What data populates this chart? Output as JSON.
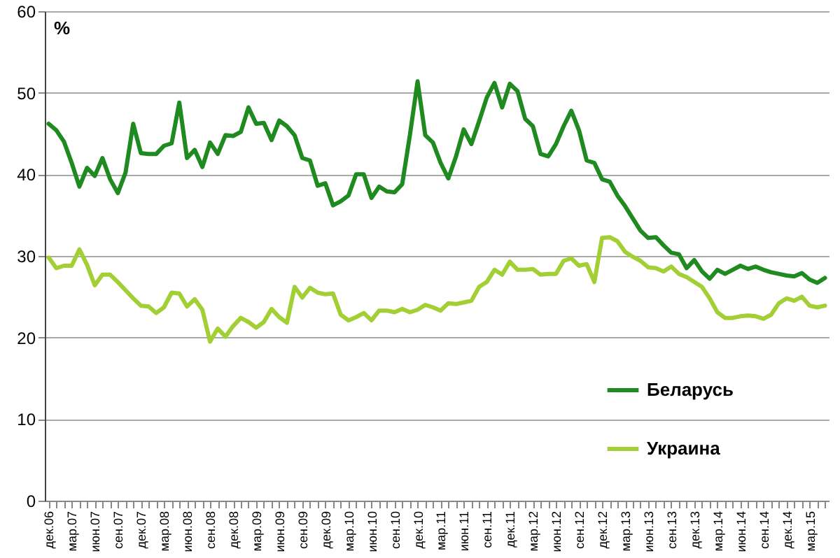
{
  "chart_data": {
    "type": "line",
    "ylabel": "%",
    "categories": [
      "дек.06",
      null,
      null,
      "мар.07",
      null,
      null,
      "июн.07",
      null,
      null,
      "сен.07",
      null,
      null,
      "дек.07",
      null,
      null,
      "мар.08",
      null,
      null,
      "июн.08",
      null,
      null,
      "сен.08",
      null,
      null,
      "дек.08",
      null,
      null,
      "мар.09",
      null,
      null,
      "июн.09",
      null,
      null,
      "сен.09",
      null,
      null,
      "дек.09",
      null,
      null,
      "мар.10",
      null,
      null,
      "июн.10",
      null,
      null,
      "сен.10",
      null,
      null,
      "дек.10",
      null,
      null,
      "мар.11",
      null,
      null,
      "июн.11",
      null,
      null,
      "сен.11",
      null,
      null,
      "дек.11",
      null,
      null,
      "мар.12",
      null,
      null,
      "июн.12",
      null,
      null,
      "сен.12",
      null,
      null,
      "дек.12",
      null,
      null,
      "мар.13",
      null,
      null,
      "июн.13",
      null,
      null,
      "сен.13",
      null,
      null,
      "дек.13",
      null,
      null,
      "мар.14",
      null,
      null,
      "июн.14",
      null,
      null,
      "сен.14",
      null,
      null,
      "дек.14",
      null,
      null,
      "мар.15",
      null,
      null
    ],
    "series": [
      {
        "name": "Беларусь",
        "color": "#1f8a1f",
        "values": [
          46.2,
          45.4,
          44,
          41.4,
          38.5,
          40.8,
          39.8,
          42,
          39.4,
          37.7,
          40.2,
          46.2,
          42.6,
          42.5,
          42.5,
          43.5,
          43.8,
          48.8,
          42,
          43,
          40.9,
          43.9,
          42.5,
          44.8,
          44.7,
          45.2,
          48.2,
          46.2,
          46.3,
          44.2,
          46.6,
          45.9,
          44.8,
          42,
          41.7,
          38.6,
          38.9,
          36.2,
          36.7,
          37.4,
          40,
          40,
          37.1,
          38.5,
          37.9,
          37.8,
          38.8,
          44.8,
          51.4,
          44.8,
          43.9,
          41.4,
          39.5,
          42.2,
          45.5,
          43.7,
          46.5,
          49.4,
          51.2,
          48.2,
          51.1,
          50.2,
          46.8,
          45.9,
          42.5,
          42.2,
          43.7,
          45.9,
          47.8,
          45.4,
          41.7,
          41.4,
          39.4,
          39.1,
          37.4,
          36.1,
          34.6,
          33.1,
          32.2,
          32.3,
          31.3,
          30.4,
          30.2,
          28.5,
          29.5,
          28.1,
          27.2,
          28.3,
          27.8,
          28.3,
          28.8,
          28.4,
          28.7,
          28.3,
          28,
          27.8,
          27.6,
          27.5,
          27.9,
          27.1,
          26.7,
          27.3
        ]
      },
      {
        "name": "Украина",
        "color": "#a2cf34",
        "values": [
          29.8,
          28.5,
          28.8,
          28.8,
          30.8,
          28.9,
          26.4,
          27.7,
          27.7,
          26.8,
          25.8,
          24.8,
          23.9,
          23.8,
          23,
          23.7,
          25.5,
          25.4,
          23.8,
          24.7,
          23.4,
          19.5,
          21.1,
          20.1,
          21.4,
          22.4,
          21.9,
          21.2,
          21.9,
          23.5,
          22.5,
          21.8,
          26.2,
          24.9,
          26.1,
          25.5,
          25.3,
          25.4,
          22.8,
          22.1,
          22.5,
          23,
          22.1,
          23.3,
          23.3,
          23.1,
          23.5,
          23.1,
          23.4,
          24,
          23.7,
          23.3,
          24.2,
          24.1,
          24.3,
          24.5,
          26.2,
          26.8,
          28.3,
          27.7,
          29.3,
          28.3,
          28.3,
          28.4,
          27.7,
          27.8,
          27.8,
          29.4,
          29.7,
          28.8,
          29,
          26.8,
          32.2,
          32.3,
          31.8,
          30.5,
          29.9,
          29.4,
          28.6,
          28.5,
          28.1,
          28.7,
          27.8,
          27.4,
          26.8,
          26.2,
          24.8,
          23.1,
          22.4,
          22.4,
          22.6,
          22.7,
          22.6,
          22.3,
          22.8,
          24.2,
          24.8,
          24.5,
          25,
          23.9,
          23.7,
          23.9
        ]
      }
    ],
    "ylim": [
      0,
      60
    ],
    "yticks": [
      0,
      10,
      20,
      30,
      40,
      50,
      60
    ],
    "grid": "y",
    "legend": "bottom right"
  }
}
